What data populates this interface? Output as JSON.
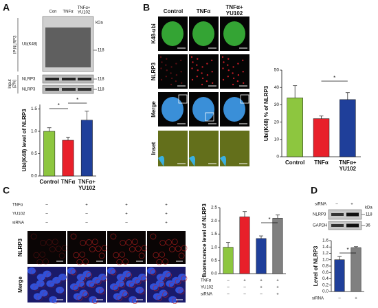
{
  "panel_labels": [
    "A",
    "B",
    "C",
    "D"
  ],
  "blot_A": {
    "lanes": [
      "Con",
      "TNFα",
      "TNFα+\nYU102"
    ],
    "kda": "kDa",
    "bands": [
      "Ub(K48)",
      "NLRP3",
      "NLRP3"
    ],
    "markers": [
      "118",
      "118",
      "118"
    ],
    "groups": [
      "IP:NLRP3",
      "Input\n(2%)"
    ]
  },
  "images_B": {
    "columns": [
      "Control",
      "TNFα",
      "TNFα+\nYU102"
    ],
    "rows": [
      "K48-ubi",
      "NLRP3",
      "Merge",
      "Inset"
    ]
  },
  "images_C": {
    "conditions": [
      {
        "name": "TNFα",
        "values": [
          "–",
          "+",
          "+",
          "+"
        ]
      },
      {
        "name": "YU102",
        "values": [
          "–",
          "–",
          "+",
          "+"
        ]
      },
      {
        "name": "siRNA",
        "values": [
          "–",
          "–",
          "–",
          "+"
        ]
      }
    ],
    "rows": [
      "NLRP3",
      "Merge"
    ]
  },
  "blot_D": {
    "header": "siRNA",
    "lanes": [
      "–",
      "+"
    ],
    "kda": "kDa",
    "bands": [
      "NLRP3",
      "GAPDH"
    ],
    "markers": [
      "118",
      "36"
    ]
  },
  "chart_data": [
    {
      "type": "bar",
      "ylabel": "Ubi(K48) level of NLRP3",
      "categories": [
        "Control",
        "TNFα",
        "TNFα+\nYU102"
      ],
      "values": [
        1.0,
        0.8,
        1.25
      ],
      "errors": [
        0.08,
        0.07,
        0.2
      ],
      "colors": [
        "#8dc63f",
        "#e8202a",
        "#1f3f9a"
      ],
      "ylim": [
        0,
        1.6
      ],
      "yticks": [
        {
          "value": 0,
          "label": "0.0"
        },
        {
          "value": 0.5,
          "label": "0.5"
        },
        {
          "value": 1,
          "label": "1.0"
        },
        {
          "value": 1.5,
          "label": "1.5"
        }
      ],
      "annotations": [
        "*",
        "*"
      ]
    },
    {
      "type": "bar",
      "ylabel": "Ubi(K48) % of NLRP3",
      "categories": [
        "Control",
        "TNFα",
        "TNFα+\nYU102"
      ],
      "values": [
        34,
        22,
        33
      ],
      "errors": [
        7,
        1.5,
        4
      ],
      "colors": [
        "#8dc63f",
        "#e8202a",
        "#1f3f9a"
      ],
      "ylim": [
        0,
        50
      ],
      "yticks": [
        0,
        10,
        20,
        30,
        40,
        50
      ],
      "annotations": [
        "*"
      ]
    },
    {
      "type": "bar",
      "ylabel": "fluorescence level of NLRP3",
      "categories": [
        null,
        null,
        null,
        null
      ],
      "values": [
        1.0,
        2.15,
        1.33,
        2.1
      ],
      "errors": [
        0.18,
        0.2,
        0.1,
        0.12
      ],
      "colors": [
        "#8dc63f",
        "#e8202a",
        "#1f3f9a",
        "#808080"
      ],
      "ylim": [
        0,
        2.5
      ],
      "yticks": [
        {
          "value": 0,
          "label": "0.0"
        },
        {
          "value": 0.5,
          "label": "0.5"
        },
        {
          "value": 1,
          "label": "1.0"
        },
        {
          "value": 1.5,
          "label": "1.5"
        },
        {
          "value": 2,
          "label": "2.0"
        },
        {
          "value": 2.5,
          "label": "2.5"
        }
      ],
      "conditions": [
        {
          "name": "TNFα",
          "values": [
            "–",
            "+",
            "+",
            "+"
          ]
        },
        {
          "name": "YU102",
          "values": [
            "–",
            "–",
            "+",
            "+"
          ]
        },
        {
          "name": "siRNA",
          "values": [
            "–",
            "–",
            "–",
            "+"
          ]
        }
      ],
      "annotations": [
        "*"
      ]
    },
    {
      "type": "bar",
      "ylabel": "Level of NLRP3",
      "categories": [
        null,
        null
      ],
      "values": [
        1.0,
        1.38
      ],
      "errors": [
        0.1,
        0.03
      ],
      "colors": [
        "#1f3f9a",
        "#808080"
      ],
      "ylim": [
        0,
        1.6
      ],
      "yticks": [
        {
          "value": 0,
          "label": "0.0"
        },
        {
          "value": 0.2,
          "label": "0.2"
        },
        {
          "value": 0.4,
          "label": "0.4"
        },
        {
          "value": 0.6,
          "label": "0.6"
        },
        {
          "value": 0.8,
          "label": "0.8"
        },
        {
          "value": 1,
          "label": "1.0"
        },
        {
          "value": 1.2,
          "label": "1.2"
        },
        {
          "value": 1.4,
          "label": "1.4"
        },
        {
          "value": 1.6,
          "label": "1.6"
        }
      ],
      "conditions": [
        {
          "name": "siRNA",
          "values": [
            "–",
            "+"
          ]
        }
      ],
      "annotations": [
        "*"
      ]
    }
  ]
}
